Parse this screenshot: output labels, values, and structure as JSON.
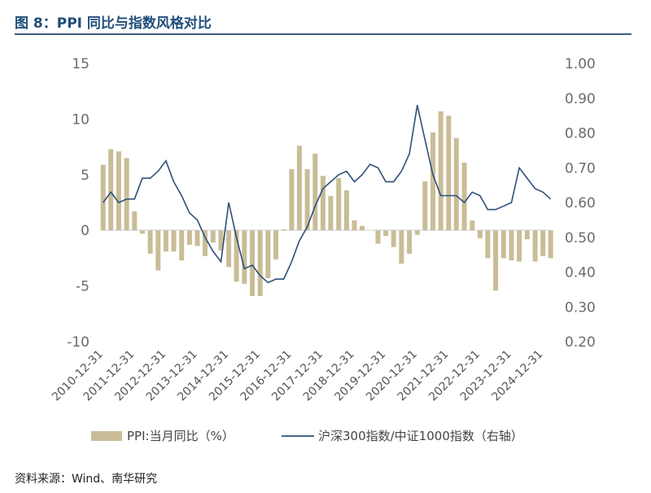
{
  "header": {
    "title": "图 8：PPI 同比与指数风格对比"
  },
  "source": {
    "text": "资料来源：Wind、南华研究"
  },
  "colors": {
    "bars": "#c9bd97",
    "line": "#2f4f7a",
    "rule": "#3f5a7a",
    "title": "#1f4e79"
  },
  "chart_data": {
    "type": "bar+line",
    "title": "",
    "series": [
      {
        "name": "PPI:当月同比（%）",
        "type": "bar",
        "axis": "left",
        "x": [
          "2010-12",
          "2011-03",
          "2011-06",
          "2011-09",
          "2011-12",
          "2012-03",
          "2012-06",
          "2012-09",
          "2012-12",
          "2013-03",
          "2013-06",
          "2013-09",
          "2013-12",
          "2014-03",
          "2014-06",
          "2014-09",
          "2014-12",
          "2015-03",
          "2015-06",
          "2015-09",
          "2015-12",
          "2016-03",
          "2016-06",
          "2016-09",
          "2016-12",
          "2017-03",
          "2017-06",
          "2017-09",
          "2017-12",
          "2018-03",
          "2018-06",
          "2018-09",
          "2018-12",
          "2019-03",
          "2019-06",
          "2019-09",
          "2019-12",
          "2020-03",
          "2020-06",
          "2020-09",
          "2020-12",
          "2021-03",
          "2021-06",
          "2021-09",
          "2021-12",
          "2022-03",
          "2022-06",
          "2022-09",
          "2022-12",
          "2023-03",
          "2023-06",
          "2023-09",
          "2023-12",
          "2024-03",
          "2024-06",
          "2024-09",
          "2024-12",
          "2025-03"
        ],
        "values": [
          5.9,
          7.3,
          7.1,
          6.5,
          1.7,
          -0.3,
          -2.1,
          -3.6,
          -1.9,
          -1.9,
          -2.7,
          -1.3,
          -1.4,
          -2.3,
          -1.1,
          -1.8,
          -3.3,
          -4.6,
          -4.8,
          -5.9,
          -5.9,
          -4.3,
          -2.6,
          0.1,
          5.5,
          7.6,
          5.5,
          6.9,
          4.9,
          3.1,
          4.7,
          3.6,
          0.9,
          0.4,
          0.0,
          -1.2,
          -0.5,
          -1.5,
          -3.0,
          -2.1,
          -0.4,
          4.4,
          8.8,
          10.7,
          10.3,
          8.3,
          6.1,
          0.9,
          -0.7,
          -2.5,
          -5.4,
          -2.5,
          -2.7,
          -2.8,
          -0.8,
          -2.8,
          -2.3,
          -2.5
        ]
      },
      {
        "name": "沪深300指数/中证1000指数（右轴）",
        "type": "line",
        "axis": "right",
        "x": [
          "2010-12",
          "2011-03",
          "2011-06",
          "2011-09",
          "2011-12",
          "2012-03",
          "2012-06",
          "2012-09",
          "2012-12",
          "2013-03",
          "2013-06",
          "2013-09",
          "2013-12",
          "2014-03",
          "2014-06",
          "2014-09",
          "2014-12",
          "2015-03",
          "2015-06",
          "2015-09",
          "2015-12",
          "2016-03",
          "2016-06",
          "2016-09",
          "2016-12",
          "2017-03",
          "2017-06",
          "2017-09",
          "2017-12",
          "2018-03",
          "2018-06",
          "2018-09",
          "2018-12",
          "2019-03",
          "2019-06",
          "2019-09",
          "2019-12",
          "2020-03",
          "2020-06",
          "2020-09",
          "2020-12",
          "2021-03",
          "2021-06",
          "2021-09",
          "2021-12",
          "2022-03",
          "2022-06",
          "2022-09",
          "2022-12",
          "2023-03",
          "2023-06",
          "2023-09",
          "2023-12",
          "2024-03",
          "2024-06",
          "2024-09",
          "2024-12",
          "2025-03"
        ],
        "values": [
          0.6,
          0.63,
          0.6,
          0.61,
          0.61,
          0.67,
          0.67,
          0.69,
          0.72,
          0.66,
          0.62,
          0.57,
          0.55,
          0.5,
          0.46,
          0.43,
          0.6,
          0.5,
          0.41,
          0.42,
          0.39,
          0.37,
          0.38,
          0.38,
          0.43,
          0.49,
          0.53,
          0.59,
          0.64,
          0.66,
          0.68,
          0.69,
          0.66,
          0.68,
          0.71,
          0.7,
          0.66,
          0.66,
          0.69,
          0.74,
          0.88,
          0.78,
          0.68,
          0.62,
          0.62,
          0.62,
          0.6,
          0.63,
          0.62,
          0.58,
          0.58,
          0.59,
          0.6,
          0.7,
          0.67,
          0.64,
          0.63,
          0.61
        ]
      }
    ],
    "x_ticks": [
      "2010-12-31",
      "2011-12-31",
      "2012-12-31",
      "2013-12-31",
      "2014-12-31",
      "2015-12-31",
      "2016-12-31",
      "2017-12-31",
      "2018-12-31",
      "2019-12-31",
      "2020-12-31",
      "2021-12-31",
      "2022-12-31",
      "2023-12-31",
      "2024-12-31"
    ],
    "y_left": {
      "min": -10,
      "max": 15,
      "ticks": [
        "-10",
        "-5",
        "0",
        "5",
        "10",
        "15"
      ]
    },
    "y_right": {
      "min": 0.2,
      "max": 1.0,
      "ticks": [
        "0.20",
        "0.30",
        "0.40",
        "0.50",
        "0.60",
        "0.70",
        "0.80",
        "0.90",
        "1.00"
      ]
    },
    "legend": {
      "position": "bottom",
      "items": [
        "PPI:当月同比（%）",
        "沪深300指数/中证1000指数（右轴）"
      ]
    },
    "grid": false
  }
}
